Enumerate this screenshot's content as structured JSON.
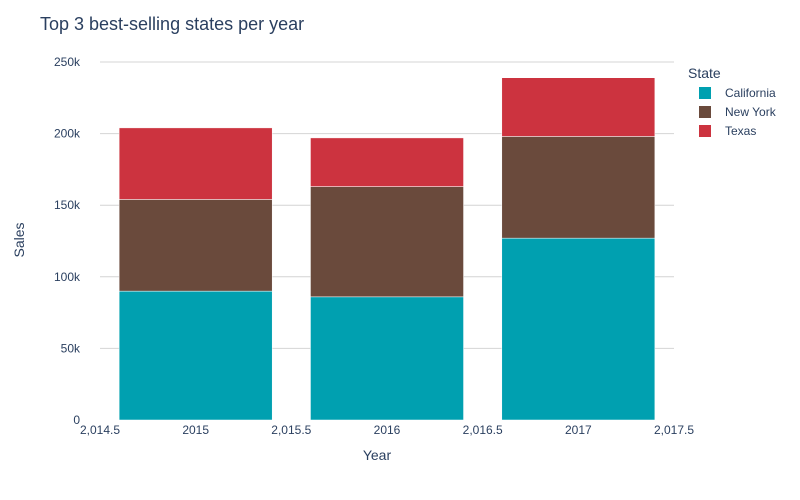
{
  "chart_data": {
    "type": "bar",
    "stacked": true,
    "title": "Top 3 best-selling states per year",
    "xlabel": "Year",
    "ylabel": "Sales",
    "x": [
      2015,
      2016,
      2017
    ],
    "x_ticks": [
      "2,014.5",
      "2015",
      "2,015.5",
      "2016",
      "2,016.5",
      "2017",
      "2,017.5"
    ],
    "x_tick_values": [
      2014.5,
      2015,
      2015.5,
      2016,
      2016.5,
      2017,
      2017.5
    ],
    "xlim": [
      2014.5,
      2017.5
    ],
    "ylim": [
      0,
      250000
    ],
    "y_ticks": [
      "0",
      "50k",
      "100k",
      "150k",
      "200k",
      "250k"
    ],
    "y_tick_values": [
      0,
      50000,
      100000,
      150000,
      200000,
      250000
    ],
    "grid": true,
    "legend": {
      "title": "State",
      "placement": "top-right"
    },
    "series": [
      {
        "name": "California",
        "color": "#00a0b0",
        "values": [
          90000,
          86000,
          127000
        ]
      },
      {
        "name": "New York",
        "color": "#6a4a3c",
        "values": [
          64000,
          77000,
          71000
        ]
      },
      {
        "name": "Texas",
        "color": "#cc333f",
        "values": [
          50000,
          34000,
          41000
        ]
      }
    ]
  }
}
